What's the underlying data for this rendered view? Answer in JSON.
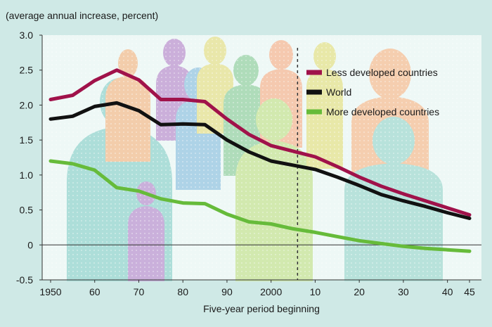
{
  "chart_data": {
    "type": "line",
    "ylabel": "(average annual increase, percent)",
    "xlabel": "Five-year period beginning",
    "ylim": [
      -0.5,
      3.0
    ],
    "xlim": [
      1950,
      2045
    ],
    "y_ticks": [
      {
        "value": -0.5,
        "label": "-0.5"
      },
      {
        "value": 0,
        "label": "0"
      },
      {
        "value": 0.5,
        "label": "0.5"
      },
      {
        "value": 1.0,
        "label": "1.0"
      },
      {
        "value": 1.5,
        "label": "1.5"
      },
      {
        "value": 2.0,
        "label": "2.0"
      },
      {
        "value": 2.5,
        "label": "2.5"
      },
      {
        "value": 3.0,
        "label": "3.0"
      }
    ],
    "x_ticks": [
      {
        "value": 1950,
        "label": "1950"
      },
      {
        "value": 1960,
        "label": "60"
      },
      {
        "value": 1970,
        "label": "70"
      },
      {
        "value": 1980,
        "label": "80"
      },
      {
        "value": 1990,
        "label": "90"
      },
      {
        "value": 2000,
        "label": "2000"
      },
      {
        "value": 2010,
        "label": "10"
      },
      {
        "value": 2020,
        "label": "20"
      },
      {
        "value": 2030,
        "label": "30"
      },
      {
        "value": 2040,
        "label": "40"
      },
      {
        "value": 2045,
        "label": "45"
      }
    ],
    "projection_start": 2006,
    "grid": false,
    "legend_position": "top-right",
    "series": [
      {
        "name": "Less developed countries",
        "color": "#a0124a",
        "x": [
          1950,
          1955,
          1960,
          1965,
          1970,
          1975,
          1980,
          1985,
          1990,
          1995,
          2000,
          2005,
          2010,
          2015,
          2020,
          2025,
          2030,
          2035,
          2040,
          2045
        ],
        "y": [
          2.08,
          2.14,
          2.35,
          2.5,
          2.36,
          2.08,
          2.08,
          2.05,
          1.8,
          1.58,
          1.42,
          1.34,
          1.26,
          1.12,
          0.97,
          0.84,
          0.73,
          0.63,
          0.53,
          0.43
        ]
      },
      {
        "name": "World",
        "color": "#111111",
        "x": [
          1950,
          1955,
          1960,
          1965,
          1970,
          1975,
          1980,
          1985,
          1990,
          1995,
          2000,
          2005,
          2010,
          2015,
          2020,
          2025,
          2030,
          2035,
          2040,
          2045
        ],
        "y": [
          1.8,
          1.84,
          1.98,
          2.03,
          1.92,
          1.72,
          1.73,
          1.72,
          1.5,
          1.33,
          1.2,
          1.14,
          1.08,
          0.97,
          0.85,
          0.72,
          0.63,
          0.55,
          0.46,
          0.38
        ]
      },
      {
        "name": "More developed countries",
        "color": "#66bb3a",
        "x": [
          1950,
          1955,
          1960,
          1965,
          1970,
          1975,
          1980,
          1985,
          1990,
          1995,
          2000,
          2005,
          2010,
          2015,
          2020,
          2025,
          2030,
          2035,
          2040,
          2045
        ],
        "y": [
          1.2,
          1.16,
          1.07,
          0.82,
          0.77,
          0.66,
          0.6,
          0.59,
          0.44,
          0.33,
          0.3,
          0.23,
          0.18,
          0.12,
          0.06,
          0.02,
          -0.02,
          -0.05,
          -0.07,
          -0.09
        ]
      }
    ]
  }
}
